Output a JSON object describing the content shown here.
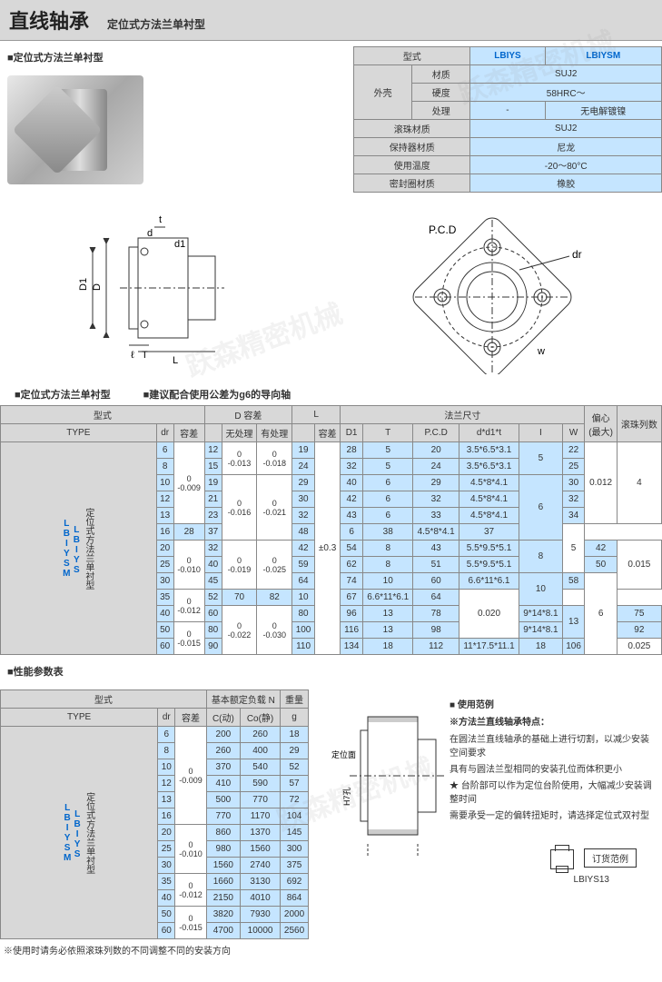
{
  "header": {
    "title": "直线轴承",
    "subtitle": "定位式方法兰单衬型"
  },
  "section1_label": "■定位式方法兰单衬型",
  "spec_table": {
    "headers": {
      "type": "型式",
      "col1": "LBIYS",
      "col2": "LBIYSM"
    },
    "rows": [
      {
        "cat": "外壳",
        "sub": "材质",
        "v1": "SUJ2",
        "v2": "",
        "merge": true
      },
      {
        "cat": "",
        "sub": "硬度",
        "v1": "58HRC～",
        "v2": "",
        "merge": true
      },
      {
        "cat": "",
        "sub": "处理",
        "v1": "-",
        "v2": "无电解镀镍",
        "merge": false
      },
      {
        "cat": "滚珠材质",
        "sub": "",
        "v1": "SUJ2",
        "v2": "",
        "merge": true
      },
      {
        "cat": "保持器材质",
        "sub": "",
        "v1": "尼龙",
        "v2": "",
        "merge": true
      },
      {
        "cat": "使用温度",
        "sub": "",
        "v1": "-20～80°C",
        "v2": "",
        "merge": true
      },
      {
        "cat": "密封圈材质",
        "sub": "",
        "v1": "橡胶",
        "v2": "",
        "merge": true
      }
    ]
  },
  "diag_labels": {
    "t": "t",
    "d": "d",
    "d1": "d1",
    "D": "D",
    "D1": "D1",
    "l": "ℓ",
    "T": "T",
    "L": "L",
    "PCD": "P.C.D",
    "dr": "dr",
    "w": "w"
  },
  "main_section_label": "■定位式方法兰单衬型",
  "main_note": "■建议配合使用公差为g6的导向轴",
  "main_table": {
    "type_label": "定位式方法兰单衬型",
    "type_codes": [
      "LBIYS",
      "LBIYSM"
    ],
    "head1": {
      "type": "型式",
      "D": "D 容差",
      "L": "L",
      "flange": "法兰尺寸",
      "ecc": "偏心\n(最大)",
      "rows": "滚珠列数"
    },
    "head2": {
      "TYPE": "TYPE",
      "dr": "dr",
      "tol": "容差",
      "none": "无处理",
      "with": "有处理",
      "Ltol": "容差",
      "D1": "D1",
      "T": "T",
      "PCD": "P.C.D",
      "ddt": "d*d1*t",
      "I": "I",
      "W": "W"
    },
    "rows": [
      {
        "dr": "6",
        "tol_g": "0\n-0.009",
        "D": "12",
        "dn": "0\n-0.013",
        "dw": "0\n-0.018",
        "L": "19",
        "Ltol": "±0.3",
        "D1": "28",
        "T": "5",
        "PCD": "20",
        "ddt": "3.5*6.5*3.1",
        "I": "5",
        "W": "22",
        "ecc": "0.012",
        "rows": "4"
      },
      {
        "dr": "8",
        "D": "15",
        "L": "24",
        "D1": "32",
        "T": "5",
        "PCD": "24",
        "ddt": "3.5*6.5*3.1",
        "W": "25"
      },
      {
        "dr": "10",
        "D": "19",
        "dn": "0\n-0.016",
        "dw": "0\n-0.021",
        "L": "29",
        "D1": "40",
        "T": "6",
        "PCD": "29",
        "ddt": "4.5*8*4.1",
        "I": "6",
        "W": "30"
      },
      {
        "dr": "12",
        "D": "21",
        "L": "30",
        "D1": "42",
        "T": "6",
        "PCD": "32",
        "ddt": "4.5*8*4.1",
        "W": "32"
      },
      {
        "dr": "13",
        "D": "23",
        "L": "32",
        "D1": "43",
        "T": "6",
        "PCD": "33",
        "ddt": "4.5*8*4.1",
        "W": "34"
      },
      {
        "dr": "16",
        "D": "28",
        "L": "37",
        "D1": "48",
        "T": "6",
        "PCD": "38",
        "ddt": "4.5*8*4.1",
        "W": "37",
        "rows": "5"
      },
      {
        "dr": "20",
        "tol_g": "0\n-0.010",
        "D": "32",
        "dn": "0\n-0.019",
        "dw": "0\n-0.025",
        "L": "42",
        "D1": "54",
        "T": "8",
        "PCD": "43",
        "ddt": "5.5*9.5*5.1",
        "I": "8",
        "W": "42",
        "ecc": "0.015"
      },
      {
        "dr": "25",
        "D": "40",
        "L": "59",
        "D1": "62",
        "T": "8",
        "PCD": "51",
        "ddt": "5.5*9.5*5.1",
        "W": "50"
      },
      {
        "dr": "30",
        "D": "45",
        "L": "64",
        "D1": "74",
        "T": "10",
        "PCD": "60",
        "ddt": "6.6*11*6.1",
        "I": "10",
        "W": "58",
        "rows": "6"
      },
      {
        "dr": "35",
        "tol_g": "0\n-0.012",
        "D": "52",
        "L": "70",
        "D1": "82",
        "T": "10",
        "PCD": "67",
        "ddt": "6.6*11*6.1",
        "W": "64",
        "ecc": "0.020"
      },
      {
        "dr": "40",
        "D": "60",
        "dn": "0\n-0.022",
        "dw": "0\n-0.030",
        "L": "80",
        "D1": "96",
        "T": "13",
        "PCD": "78",
        "ddt": "9*14*8.1",
        "I": "13",
        "W": "75"
      },
      {
        "dr": "50",
        "tol_g": "0\n-0.015",
        "D": "80",
        "L": "100",
        "D1": "116",
        "T": "13",
        "PCD": "98",
        "ddt": "9*14*8.1",
        "W": "92"
      },
      {
        "dr": "60",
        "D": "90",
        "L": "110",
        "D1": "134",
        "T": "18",
        "PCD": "112",
        "ddt": "11*17.5*11.1",
        "I": "18",
        "W": "106",
        "ecc": "0.025"
      }
    ]
  },
  "perf_label": "■性能参数表",
  "perf_table": {
    "head1": {
      "type": "型式",
      "load": "基本额定负载  N",
      "weight": "重量"
    },
    "head2": {
      "TYPE": "TYPE",
      "dr": "dr",
      "tol": "容差",
      "C": "C(动)",
      "Co": "Co(静)",
      "g": "g"
    },
    "type_label": "定位式方法兰单衬型",
    "type_codes": [
      "LBIYS",
      "LBIYSM"
    ],
    "rows": [
      {
        "dr": "6",
        "tol": "0\n-0.009",
        "C": "200",
        "Co": "260",
        "g": "18"
      },
      {
        "dr": "8",
        "C": "260",
        "Co": "400",
        "g": "29"
      },
      {
        "dr": "10",
        "C": "370",
        "Co": "540",
        "g": "52"
      },
      {
        "dr": "12",
        "C": "410",
        "Co": "590",
        "g": "57"
      },
      {
        "dr": "13",
        "C": "500",
        "Co": "770",
        "g": "72"
      },
      {
        "dr": "16",
        "C": "770",
        "Co": "1170",
        "g": "104"
      },
      {
        "dr": "20",
        "tol": "0\n-0.010",
        "C": "860",
        "Co": "1370",
        "g": "145"
      },
      {
        "dr": "25",
        "C": "980",
        "Co": "1560",
        "g": "300"
      },
      {
        "dr": "30",
        "C": "1560",
        "Co": "2740",
        "g": "375"
      },
      {
        "dr": "35",
        "tol": "0\n-0.012",
        "C": "1660",
        "Co": "3130",
        "g": "692"
      },
      {
        "dr": "40",
        "C": "2150",
        "Co": "4010",
        "g": "864"
      },
      {
        "dr": "50",
        "tol": "0\n-0.015",
        "C": "3820",
        "Co": "7930",
        "g": "2000"
      },
      {
        "dr": "60",
        "C": "4700",
        "Co": "10000",
        "g": "2560"
      }
    ]
  },
  "usage": {
    "title": "■ 使用范例",
    "subtitle": "※方法兰直线轴承特点：",
    "line1": "在圆法兰直线轴承的基础上进行切割，以减少安装空间要求",
    "line2": "具有与圆法兰型相同的安装孔位而体积更小",
    "line3": "★ 台阶部可以作为定位台阶使用，大幅减少安装调整时间",
    "line4": "需要承受一定的偏转扭矩时，请选择定位式双衬型",
    "order_label": "订货范例",
    "order_code": "LBIYS13",
    "side_label1": "定位面",
    "side_label2": "H7孔"
  },
  "footer": "※使用时请务必依照滚珠列数的不同调整不同的安装方向"
}
